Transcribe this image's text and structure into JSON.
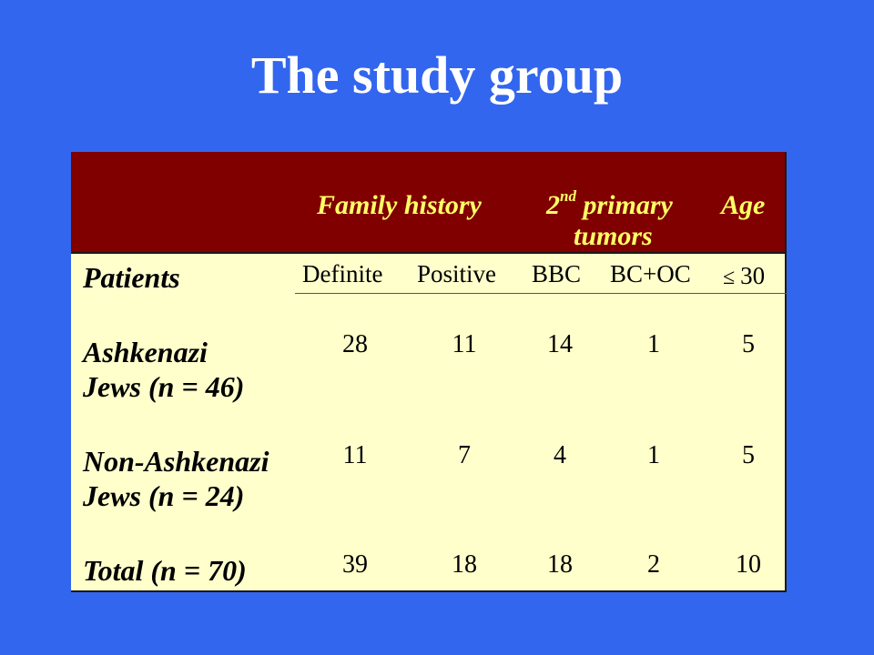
{
  "slide": {
    "title": "The study group"
  },
  "table": {
    "header": {
      "family_history": "Family  history",
      "second_primary_ord": "2",
      "second_primary_sup": "nd",
      "second_primary_rest": " primary",
      "second_primary_line2": "tumors",
      "age": "Age"
    },
    "subheaders": {
      "definite": "Definite",
      "positive": "Positive",
      "bbc": "BBC",
      "bcoc": "BC+OC",
      "age_threshold": "30"
    },
    "patients_label": "Patients",
    "rows": [
      {
        "label_line1": "Ashkenazi",
        "label_line2": "Jews (n = 46)",
        "values": [
          "28",
          "11",
          "14",
          "1",
          "5"
        ]
      },
      {
        "label_line1": "Non-Ashkenazi",
        "label_line2": "Jews (n = 24)",
        "values": [
          "11",
          "7",
          "4",
          "1",
          "5"
        ]
      },
      {
        "label_line1": "Total (n = 70)",
        "values": [
          "39",
          "18",
          "18",
          "2",
          "10"
        ]
      }
    ]
  }
}
